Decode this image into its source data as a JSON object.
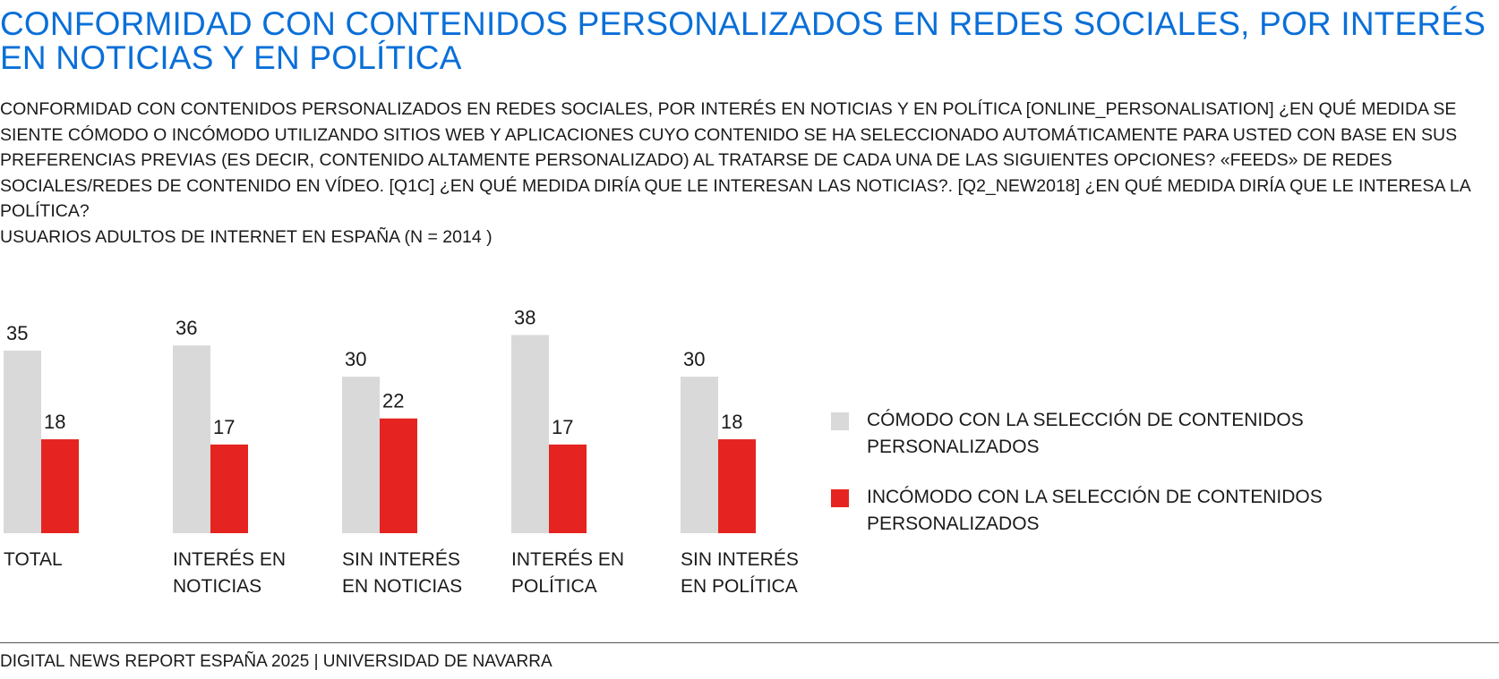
{
  "title": "CONFORMIDAD CON CONTENIDOS PERSONALIZADOS EN REDES SOCIALES, POR INTERÉS EN NOTICIAS Y EN POLÍTICA",
  "subtitle": {
    "question": "CONFORMIDAD CON CONTENIDOS PERSONALIZADOS EN REDES SOCIALES, POR INTERÉS EN NOTICIAS Y EN POLÍTICA [ONLINE_PERSONALISATION] ¿EN QUÉ MEDIDA SE SIENTE CÓMODO O INCÓMODO UTILIZANDO SITIOS WEB Y APLICACIONES CUYO CONTENIDO SE HA SELECCIONADO AUTOMÁTICAMENTE PARA USTED CON BASE EN SUS PREFERENCIAS PREVIAS (ES DECIR, CONTENIDO ALTAMENTE PERSONALIZADO) AL TRATARSE DE CADA UNA DE LAS SIGUIENTES OPCIONES? «FEEDS» DE REDES SOCIALES/REDES DE CONTENIDO EN VÍDEO.  [Q1C] ¿EN QUÉ MEDIDA DIRÍA QUE LE INTERESAN LAS NOTICIAS?. [Q2_NEW2018] ¿EN QUÉ MEDIDA DIRÍA QUE LE INTERESA LA POLÍTICA?",
    "base": "USUARIOS ADULTOS DE INTERNET EN ESPAÑA (N = 2014 )"
  },
  "chart_data": {
    "type": "bar",
    "categories": [
      [
        "TOTAL"
      ],
      [
        "INTERÉS EN",
        "NOTICIAS"
      ],
      [
        "SIN INTERÉS",
        "EN NOTICIAS"
      ],
      [
        "INTERÉS EN",
        "POLÍTICA"
      ],
      [
        "SIN INTERÉS",
        "EN POLÍTICA"
      ]
    ],
    "series": [
      {
        "name": "CÓMODO CON LA SELECCIÓN DE CONTENIDOS PERSONALIZADOS",
        "color": "#d9d9d9",
        "values": [
          35,
          36,
          30,
          38,
          30
        ]
      },
      {
        "name": "INCÓMODO CON LA SELECCIÓN DE CONTENIDOS PERSONALIZADOS",
        "color": "#e52421",
        "values": [
          18,
          17,
          22,
          17,
          18
        ]
      }
    ],
    "legend_position": "right",
    "grid": false
  },
  "legend": [
    {
      "label": "CÓMODO CON LA SELECCIÓN DE CONTENIDOS PERSONALIZADOS",
      "color": "#d9d9d9"
    },
    {
      "label": "INCÓMODO CON LA SELECCIÓN DE CONTENIDOS PERSONALIZADOS",
      "color": "#e52421"
    }
  ],
  "footer": "DIGITAL NEWS REPORT ESPAÑA 2025 | UNIVERSIDAD DE NAVARRA",
  "colors": {
    "title": "#0a6fd8",
    "comfortable": "#d9d9d9",
    "uncomfortable": "#e52421"
  }
}
